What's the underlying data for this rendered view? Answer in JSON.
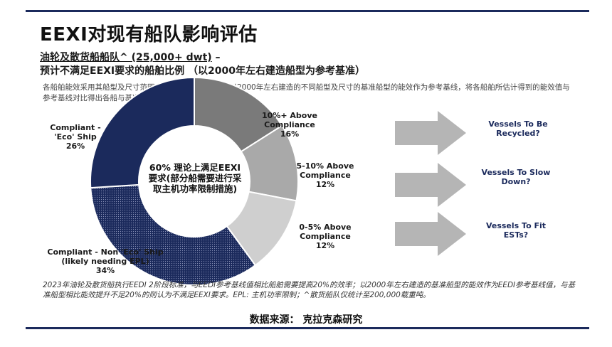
{
  "title": "EEXI对现有船队影响评估",
  "subtitle": {
    "line1_underlined": "油轮及散货船船队^ (25,000+ dwt)",
    "line1_rest": " –",
    "line2": "预计不满足EEXI要求的船舶比例 （以2000年左右建造船型为参考基准）"
  },
  "description": "各船舶能效采用其船型及尺寸范围内的基准船型能效值，以2000年左右建造的不同船型及尺寸的基准船型的能效作为参考基线，将各船舶所估计得到的能效值与参考基线对比得出各船与基准船型相比能效提升比例。",
  "center_text": "60% 理论上满足EEXI要求(部分船需要进行采取主机功率限制措施)",
  "chart_data": {
    "type": "pie",
    "donut": true,
    "start": "top",
    "direction": "clockwise",
    "segments": [
      {
        "label_lines": [
          "10%+ Above",
          "Compliance",
          "16%"
        ],
        "value": 16,
        "color": "#7a7a7a",
        "pattern": "solid"
      },
      {
        "label_lines": [
          "5-10% Above",
          "Compliance",
          "12%"
        ],
        "value": 12,
        "color": "#a9a9a9",
        "pattern": "solid"
      },
      {
        "label_lines": [
          "0-5% Above",
          "Compliance",
          "12%"
        ],
        "value": 12,
        "color": "#cfcfcf",
        "pattern": "solid"
      },
      {
        "label_lines": [
          "Compliant - Non 'Eco' Ship",
          "(likely needing EPL)",
          "34%"
        ],
        "value": 34,
        "color": "#1b2a5c",
        "pattern": "dots"
      },
      {
        "label_lines": [
          "Compliant -",
          "'Eco' Ship",
          "26%"
        ],
        "value": 26,
        "color": "#1b2a5c",
        "pattern": "solid"
      }
    ]
  },
  "outcomes": [
    {
      "text": "Vessels To Be Recycled?"
    },
    {
      "text": "Vessels To Slow Down?"
    },
    {
      "text": "Vessels To Fit ESTs?"
    }
  ],
  "footnote": "2023年油轮及散货船执行EEDI 2阶段标准，与EEDI参考基线值相比船舶需要提高20%的效率；以2000年左右建造的基准船型的能效作为EEDI参考基线值，与基准船型相比能效提升不足20%的则认为不满足EEXI要求。EPL: 主机功率限制；^散货船队仅统计至200,000载重吨。",
  "source": "数据来源：  克拉克森研究",
  "colors": {
    "navy": "#1b2a5c",
    "arrow": "#b5b5b5"
  }
}
